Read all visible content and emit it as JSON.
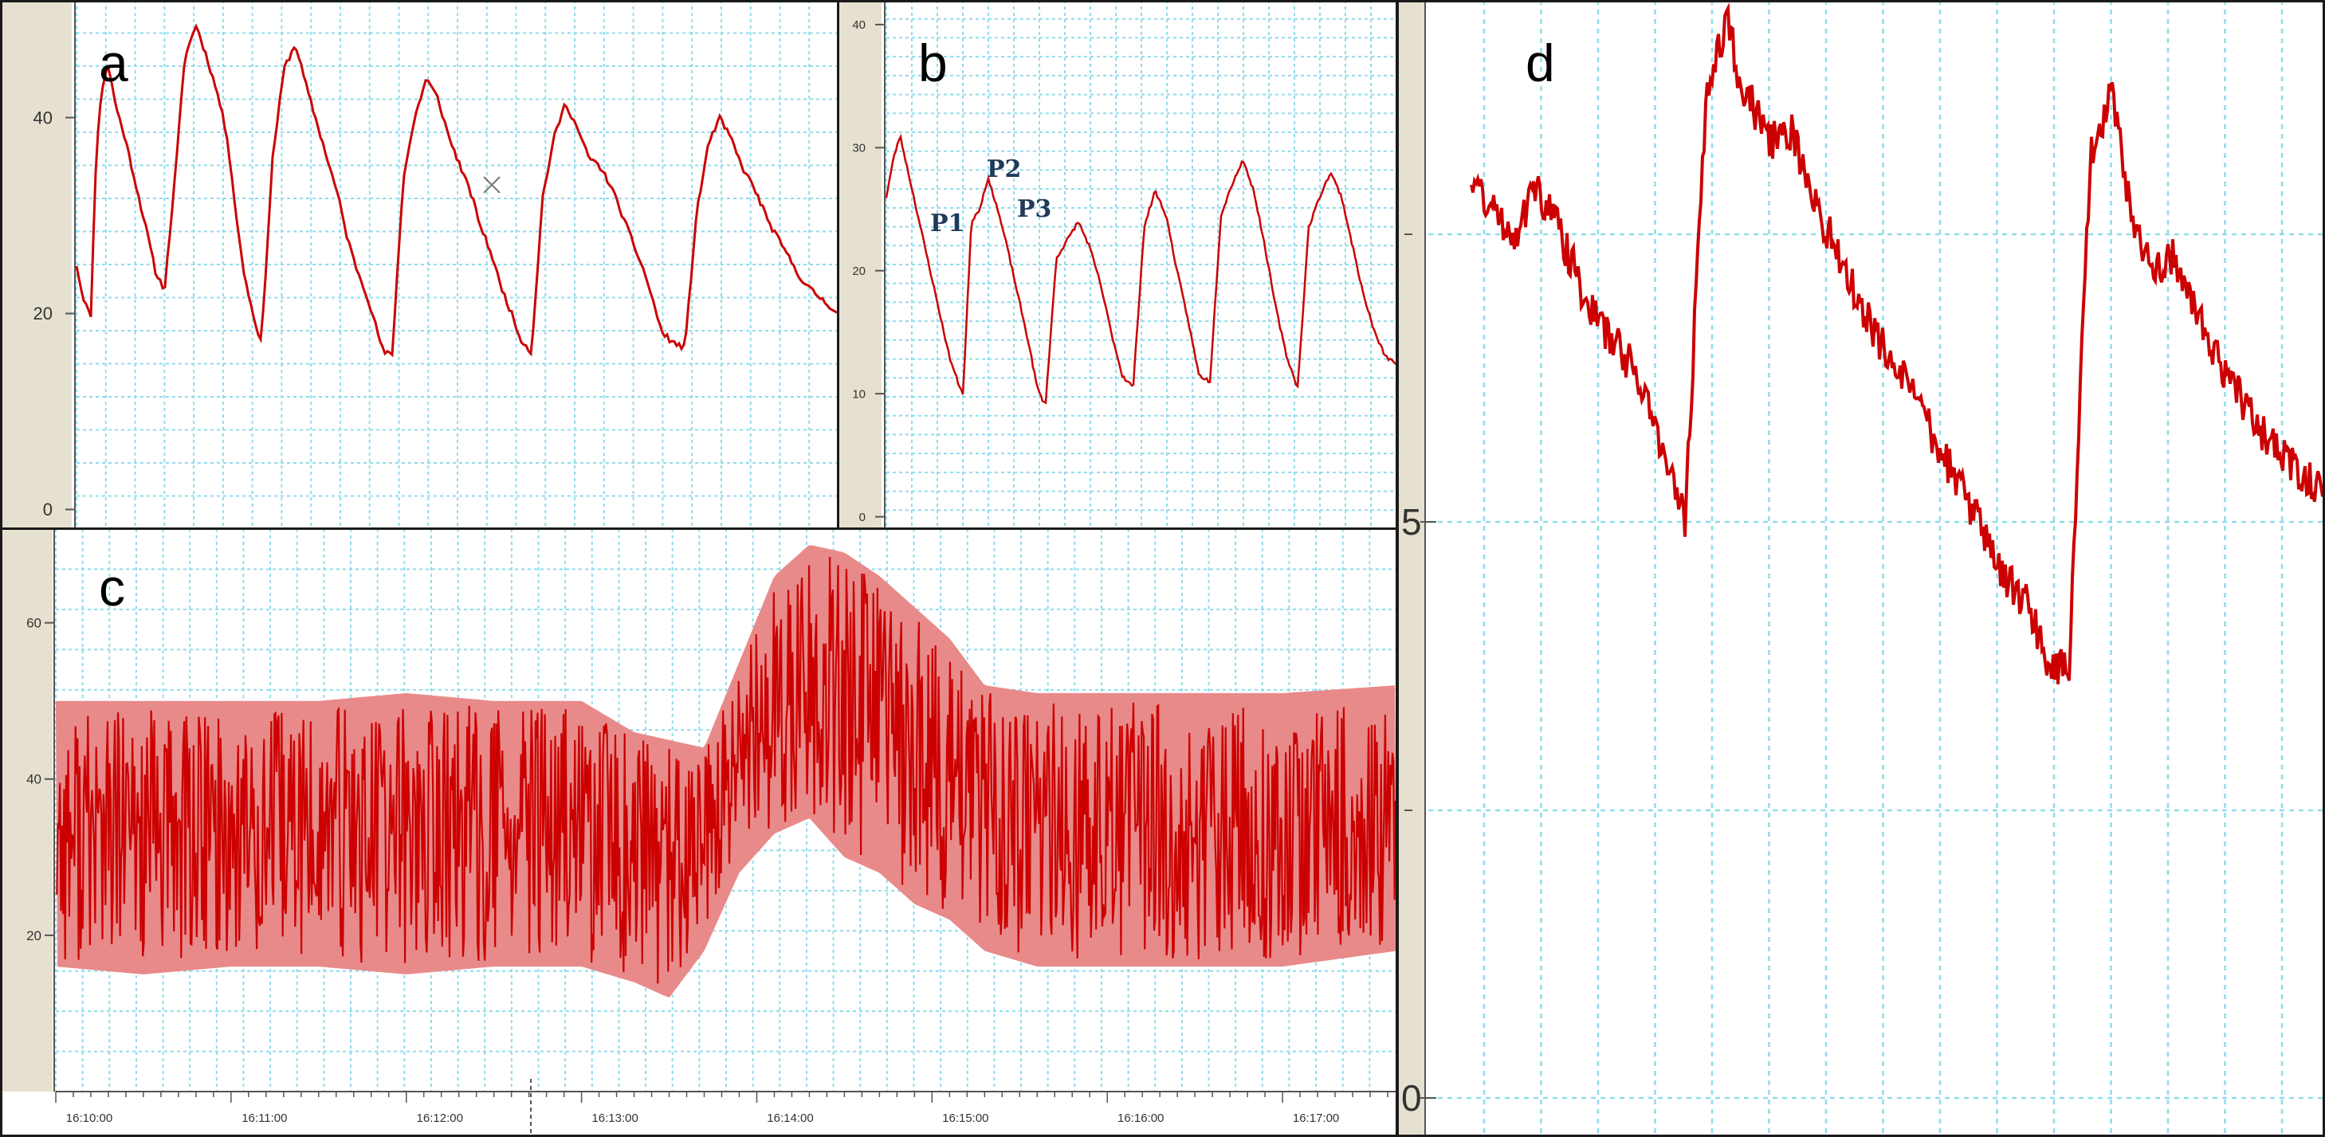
{
  "colors": {
    "trace": "#cc0000",
    "trace_light": "#e88a8a",
    "grid": "#8fdcec",
    "axis_strip": "#e6e0d0",
    "frame": "#1a1a1a"
  },
  "chart_data": [
    {
      "panel": "a",
      "type": "line",
      "title": "",
      "xlabel": "",
      "ylabel": "",
      "ylim": [
        -2,
        52
      ],
      "yticks": [
        "0",
        "20",
        "40"
      ],
      "ytick_values": [
        0,
        20,
        40
      ],
      "grid": true,
      "series": [
        {
          "x": [
            0,
            0.04,
            0.1,
            0.14,
            0.18,
            0.22,
            0.28,
            0.34,
            0.42,
            0.5,
            0.56,
            0.62,
            0.7,
            0.76,
            0.84,
            0.92,
            1.0,
            1.06,
            1.1,
            1.14,
            1.18,
            1.24,
            1.3,
            1.38,
            1.46,
            1.54,
            1.62,
            1.7,
            1.78,
            1.84,
            1.9,
            1.96,
            2.04,
            2.1,
            2.16,
            2.22,
            2.3,
            2.38,
            2.46,
            2.54,
            2.62,
            2.7,
            2.78,
            2.84,
            2.92,
            2.98,
            3.06,
            3.12,
            3.2,
            3.28,
            3.36,
            3.44,
            3.52,
            3.6,
            3.68,
            3.76,
            3.84,
            3.92,
            4.0,
            4.06,
            4.12,
            4.2,
            4.28,
            4.36,
            4.44,
            4.52,
            4.6,
            4.68,
            4.76,
            4.82,
            4.88,
            4.96,
            5.04,
            5.12,
            5.2,
            5.28,
            5.36
          ],
          "y": [
            25,
            22,
            19.5,
            37,
            43,
            45.5,
            41,
            38,
            33,
            28,
            24,
            22.5,
            35,
            46,
            49.5,
            46,
            42,
            38,
            33,
            28,
            24,
            20,
            17,
            36,
            45,
            47.5,
            43,
            39,
            35,
            32,
            28,
            25,
            22,
            19,
            16,
            15.8,
            34,
            40,
            44,
            42,
            38,
            35,
            32,
            29,
            26,
            23,
            20,
            17.5,
            16,
            32,
            38,
            41.5,
            39,
            36,
            35,
            33,
            30,
            27,
            24,
            21,
            18,
            17,
            16.5,
            30,
            37,
            40,
            38,
            35,
            33,
            31,
            29,
            27,
            25,
            23,
            22,
            21,
            20
          ]
        }
      ]
    },
    {
      "panel": "b",
      "type": "line",
      "title": "",
      "xlabel": "",
      "ylabel": "",
      "ylim": [
        -1,
        42
      ],
      "yticks": [
        "0",
        "10",
        "20",
        "30",
        "40"
      ],
      "ytick_values": [
        0,
        10,
        20,
        30,
        40
      ],
      "grid": true,
      "annotations": [
        "P1",
        "P2",
        "P3"
      ],
      "series": [
        {
          "x": [
            0,
            0.05,
            0.1,
            0.16,
            0.24,
            0.32,
            0.4,
            0.46,
            0.52,
            0.56,
            0.62,
            0.68,
            0.74,
            0.8,
            0.88,
            0.96,
            1.04,
            1.1,
            1.16,
            1.24,
            1.32,
            1.4,
            1.48,
            1.56,
            1.64,
            1.72,
            1.8,
            1.88,
            1.96,
            2.04,
            2.12,
            2.2,
            2.28,
            2.36,
            2.44,
            2.52,
            2.6,
            2.68,
            2.76,
            2.84,
            2.92,
            3.0,
            3.08,
            3.16,
            3.24,
            3.32,
            3.4,
            3.48,
            3.56,
            3.64,
            3.72
          ],
          "y": [
            26,
            29,
            31,
            28,
            24,
            20,
            16,
            13,
            11,
            10,
            24,
            25,
            27.5,
            25.5,
            22,
            18,
            14,
            10.5,
            9,
            21,
            22.5,
            24,
            22,
            19,
            15,
            11.5,
            10.5,
            23.5,
            26.5,
            24.5,
            20,
            16,
            11.5,
            11,
            24.5,
            27,
            29,
            26.5,
            22,
            17,
            13,
            10.5,
            23.5,
            26,
            28,
            26,
            22,
            18,
            15,
            13,
            12.5
          ]
        }
      ]
    },
    {
      "panel": "c",
      "type": "line",
      "title": "",
      "xlabel": "",
      "ylabel": "",
      "ylim": [
        0,
        72
      ],
      "yticks": [
        "20",
        "40",
        "60"
      ],
      "ytick_values": [
        20,
        40,
        60
      ],
      "xticks": [
        "16:10:00",
        "16:11:00",
        "16:12:00",
        "16:13:00",
        "16:14:00",
        "16:15:00",
        "16:16:00",
        "16:17:00"
      ],
      "xlim_minutes": [
        0,
        7.65
      ],
      "grid": true,
      "series": [
        {
          "x_minutes": [
            0,
            0.5,
            1.0,
            1.5,
            2.0,
            2.5,
            3.0,
            3.3,
            3.5,
            3.7,
            3.9,
            4.1,
            4.3,
            4.5,
            4.7,
            4.9,
            5.1,
            5.3,
            5.6,
            6.0,
            6.5,
            7.0,
            7.65
          ],
          "y_max": [
            50,
            50,
            50,
            50,
            51,
            50,
            50,
            46,
            45,
            44,
            55,
            66,
            70,
            69,
            66,
            62,
            58,
            52,
            51,
            51,
            51,
            51,
            52
          ],
          "y_min": [
            16,
            15,
            16,
            16,
            15,
            16,
            16,
            14,
            12,
            18,
            28,
            33,
            35,
            30,
            28,
            24,
            22,
            18,
            16,
            16,
            16,
            16,
            18
          ]
        }
      ]
    },
    {
      "panel": "d",
      "type": "line",
      "title": "",
      "xlabel": "",
      "ylabel": "",
      "ylim": [
        0,
        10
      ],
      "yticks": [
        "0",
        "5"
      ],
      "ytick_values": [
        0,
        5
      ],
      "grid": true,
      "series": [
        {
          "x": [
            0,
            0.25,
            0.5,
            0.75,
            1.0,
            1.25,
            1.5,
            1.75,
            2.0,
            2.25,
            2.5,
            2.75,
            3.0,
            3.15,
            3.3,
            3.5,
            3.75,
            4.0,
            4.25,
            4.5,
            4.75,
            5.0,
            5.25,
            5.5,
            5.75,
            6.0,
            6.25,
            6.5,
            6.75,
            7.0,
            7.25,
            7.5,
            7.75,
            8.0,
            8.25,
            8.5,
            8.75,
            9.0,
            9.25,
            9.5,
            9.75,
            10.0
          ],
          "y": [
            8.0,
            7.7,
            7.5,
            7.9,
            7.6,
            7.1,
            6.7,
            6.5,
            6.2,
            5.6,
            5.0,
            8.7,
            9.4,
            8.8,
            8.6,
            8.3,
            8.4,
            7.8,
            7.4,
            7.0,
            6.6,
            6.3,
            6.0,
            5.6,
            5.3,
            4.9,
            4.5,
            4.3,
            3.8,
            3.7,
            8.2,
            8.7,
            7.6,
            7.2,
            7.3,
            6.8,
            6.4,
            6.1,
            5.8,
            5.6,
            5.4,
            5.2
          ]
        }
      ]
    }
  ]
}
